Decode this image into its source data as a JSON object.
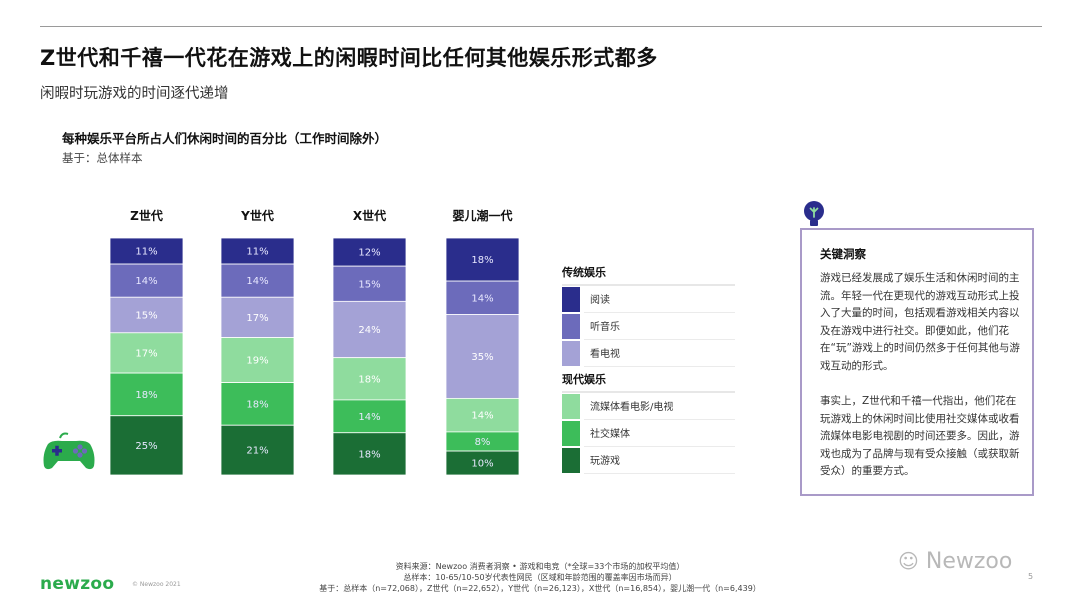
{
  "header": {
    "title": "Z世代和千禧一代花在游戏上的闲暇时间比任何其他娱乐形式都多",
    "subtitle": "闲暇时玩游戏的时间逐代递增"
  },
  "chart_data": {
    "type": "bar",
    "stacked": true,
    "title": "每种娱乐平台所占人们休闲时间的百分比（工作时间除外）",
    "subtitle": "基于：总体样本",
    "categories": [
      "Z世代",
      "Y世代",
      "X世代",
      "婴儿潮一代"
    ],
    "series": [
      {
        "name": "阅读",
        "group": "传统娱乐",
        "color": "#2a2d8c",
        "values": [
          11,
          11,
          12,
          18
        ]
      },
      {
        "name": "听音乐",
        "group": "传统娱乐",
        "color": "#6c6bbb",
        "values": [
          14,
          14,
          15,
          14
        ]
      },
      {
        "name": "看电视",
        "group": "传统娱乐",
        "color": "#a4a2d6",
        "values": [
          15,
          17,
          24,
          35
        ]
      },
      {
        "name": "流媒体看电影/电视",
        "group": "现代娱乐",
        "color": "#8fdc9e",
        "values": [
          17,
          19,
          18,
          14
        ]
      },
      {
        "name": "社交媒体",
        "group": "现代娱乐",
        "color": "#3dbd5a",
        "values": [
          18,
          18,
          14,
          8
        ]
      },
      {
        "name": "玩游戏",
        "group": "现代娱乐",
        "color": "#1b6e35",
        "values": [
          25,
          21,
          18,
          10
        ]
      }
    ],
    "label_format": "{v}%",
    "legend": {
      "placement": "right",
      "groups": [
        "传统娱乐",
        "现代娱乐"
      ]
    }
  },
  "insight": {
    "title": "关键洞察",
    "p1": "游戏已经发展成了娱乐生活和休闲时间的主流。年轻一代在更现代的游戏互动形式上投入了大量的时间，包括观看游戏相关内容以及在游戏中进行社交。即便如此，他们花在“玩”游戏上的时间仍然多于任何其他与游戏互动的形式。",
    "p2": "事实上，Z世代和千禧一代指出，他们花在玩游戏上的休闲时间比使用社交媒体或收看流媒体电影电视剧的时间还要多。因此，游戏也成为了品牌与现有受众接触（或获取新受众）的重要方式。"
  },
  "footer": {
    "source": "资料来源：Newzoo 消费者洞察 • 游戏和电竞（*全球=33个市场的加权平均值）",
    "sample": "总样本：10-65/10-50岁代表性网民（区域和年龄范围的覆盖率因市场而异）",
    "base": "基于：总样本（n=72,068），Z世代（n=22,652），Y世代（n=26,123），X世代（n=16,854），婴儿潮一代（n=6,439）",
    "logo": "newzoo",
    "copyright": "© Newzoo 2021",
    "watermark": "Newzoo",
    "page": "5"
  },
  "colors": {
    "accent_green": "#2bab4c",
    "insight_border": "#a99ac8"
  },
  "icons": [
    "gamepad-icon",
    "lightbulb-icon",
    "wechat-icon"
  ]
}
